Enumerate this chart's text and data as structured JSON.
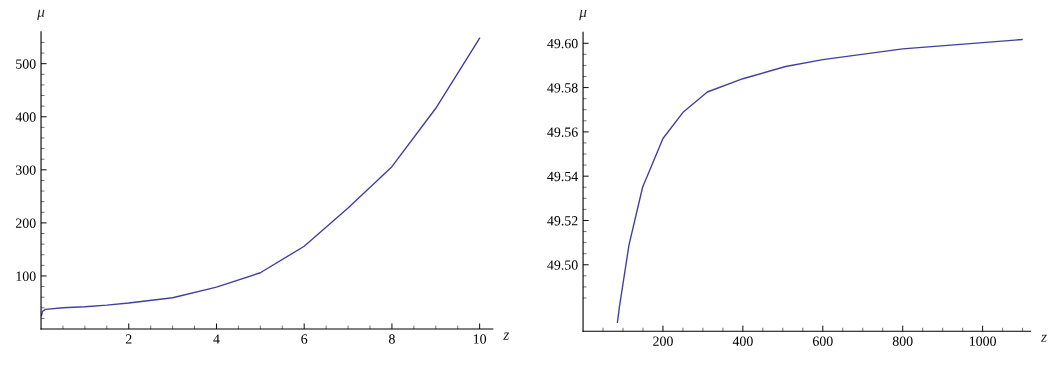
{
  "chart_data": [
    {
      "type": "line",
      "xlabel": "z",
      "ylabel": "μ",
      "xlim": [
        0,
        10.3
      ],
      "ylim": [
        0,
        560
      ],
      "xticks": [
        {
          "value": 0.5,
          "label": null
        },
        {
          "value": 1,
          "label": null
        },
        {
          "value": 1.5,
          "label": null
        },
        2,
        {
          "value": 2.5,
          "label": null
        },
        {
          "value": 3,
          "label": null
        },
        {
          "value": 3.5,
          "label": null
        },
        4,
        {
          "value": 4.5,
          "label": null
        },
        {
          "value": 5,
          "label": null
        },
        {
          "value": 5.5,
          "label": null
        },
        6,
        {
          "value": 6.5,
          "label": null
        },
        {
          "value": 7,
          "label": null
        },
        {
          "value": 7.5,
          "label": null
        },
        8,
        {
          "value": 8.5,
          "label": null
        },
        {
          "value": 9,
          "label": null
        },
        {
          "value": 9.5,
          "label": null
        },
        10
      ],
      "yticks": [
        {
          "value": 20,
          "label": null
        },
        {
          "value": 40,
          "label": null
        },
        {
          "value": 60,
          "label": null
        },
        {
          "value": 80,
          "label": null
        },
        100,
        {
          "value": 120,
          "label": null
        },
        {
          "value": 140,
          "label": null
        },
        {
          "value": 160,
          "label": null
        },
        {
          "value": 180,
          "label": null
        },
        200,
        {
          "value": 220,
          "label": null
        },
        {
          "value": 240,
          "label": null
        },
        {
          "value": 260,
          "label": null
        },
        {
          "value": 280,
          "label": null
        },
        300,
        {
          "value": 320,
          "label": null
        },
        {
          "value": 340,
          "label": null
        },
        {
          "value": 360,
          "label": null
        },
        {
          "value": 380,
          "label": null
        },
        400,
        {
          "value": 420,
          "label": null
        },
        {
          "value": 440,
          "label": null
        },
        {
          "value": 460,
          "label": null
        },
        {
          "value": 480,
          "label": null
        },
        500,
        {
          "value": 520,
          "label": null
        },
        {
          "value": 540,
          "label": null
        }
      ],
      "grid": false,
      "legend": false,
      "series": [
        {
          "color": "#4040a0",
          "x": [
            0.01,
            0.03,
            0.1,
            0.5,
            1,
            1.5,
            2,
            3,
            4,
            5,
            6,
            7,
            8,
            9,
            10
          ],
          "values": [
            25,
            33,
            37,
            40,
            42,
            45,
            49,
            59,
            79,
            106,
            156,
            228,
            306,
            416,
            548
          ]
        }
      ]
    },
    {
      "type": "line",
      "xlabel": "z",
      "ylabel": "μ",
      "xlim": [
        0,
        1120
      ],
      "ylim": [
        49.47,
        49.605
      ],
      "xticks": [
        {
          "value": 50,
          "label": null
        },
        {
          "value": 100,
          "label": null
        },
        {
          "value": 150,
          "label": null
        },
        200,
        {
          "value": 250,
          "label": null
        },
        {
          "value": 300,
          "label": null
        },
        {
          "value": 350,
          "label": null
        },
        400,
        {
          "value": 450,
          "label": null
        },
        {
          "value": 500,
          "label": null
        },
        {
          "value": 550,
          "label": null
        },
        600,
        {
          "value": 650,
          "label": null
        },
        {
          "value": 700,
          "label": null
        },
        {
          "value": 750,
          "label": null
        },
        800,
        {
          "value": 850,
          "label": null
        },
        {
          "value": 900,
          "label": null
        },
        {
          "value": 950,
          "label": null
        },
        1000,
        {
          "value": 1050,
          "label": null
        },
        {
          "value": 1100,
          "label": null
        }
      ],
      "yticks": [
        {
          "value": 49.485,
          "label": null
        },
        {
          "value": 49.49,
          "label": null
        },
        {
          "value": 49.495,
          "label": null
        },
        {
          "value": 49.5,
          "label": "49.50"
        },
        {
          "value": 49.505,
          "label": null
        },
        {
          "value": 49.51,
          "label": null
        },
        {
          "value": 49.515,
          "label": null
        },
        {
          "value": 49.52,
          "label": "49.52"
        },
        {
          "value": 49.525,
          "label": null
        },
        {
          "value": 49.53,
          "label": null
        },
        {
          "value": 49.535,
          "label": null
        },
        {
          "value": 49.54,
          "label": "49.54"
        },
        {
          "value": 49.545,
          "label": null
        },
        {
          "value": 49.55,
          "label": null
        },
        {
          "value": 49.555,
          "label": null
        },
        {
          "value": 49.56,
          "label": "49.56"
        },
        {
          "value": 49.565,
          "label": null
        },
        {
          "value": 49.57,
          "label": null
        },
        {
          "value": 49.575,
          "label": null
        },
        {
          "value": 49.58,
          "label": "49.58"
        },
        {
          "value": 49.585,
          "label": null
        },
        {
          "value": 49.59,
          "label": null
        },
        {
          "value": 49.595,
          "label": null
        },
        {
          "value": 49.6,
          "label": "49.60"
        }
      ],
      "grid": false,
      "legend": false,
      "series": [
        {
          "color": "#4040a0",
          "x": [
            86,
            91,
            115,
            149,
            200,
            251,
            311,
            400,
            507,
            600,
            800,
            1000,
            1099
          ],
          "values": [
            49.474,
            49.481,
            49.509,
            49.535,
            49.557,
            49.569,
            49.578,
            49.584,
            49.5895,
            49.5926,
            49.5975,
            49.6003,
            49.6017
          ]
        }
      ]
    }
  ]
}
